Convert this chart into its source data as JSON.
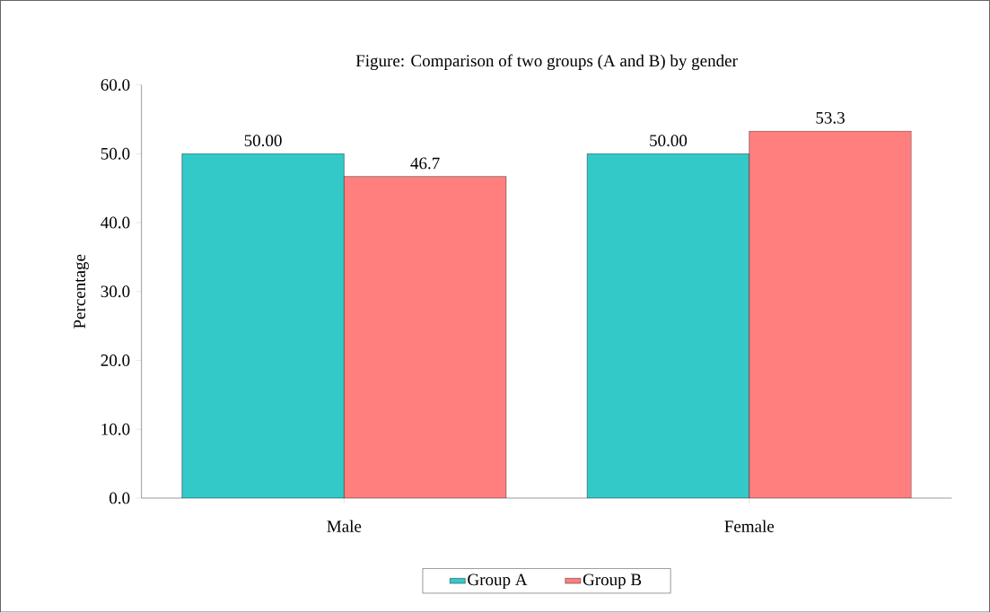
{
  "chart_data": {
    "type": "bar",
    "title": "Figure: Comparison of two groups (A and B) by gender",
    "ylabel": "Percentage",
    "categories": [
      "Male",
      "Female"
    ],
    "series": [
      {
        "name": "Group A",
        "color": "#33c9c9",
        "values": [
          50.0,
          50.0
        ],
        "value_labels": [
          "50.00",
          "50.00"
        ]
      },
      {
        "name": "Group B",
        "color": "#ff7f7f",
        "values": [
          46.7,
          53.3
        ],
        "value_labels": [
          "46.7",
          "53.3"
        ]
      }
    ],
    "ylim": [
      0,
      60
    ],
    "yticks": [
      {
        "value": 0,
        "label": "0.0"
      },
      {
        "value": 10,
        "label": "10.0"
      },
      {
        "value": 20,
        "label": "20.0"
      },
      {
        "value": 30,
        "label": "30.0"
      },
      {
        "value": 40,
        "label": "40.0"
      },
      {
        "value": 50,
        "label": "50.0"
      },
      {
        "value": 60,
        "label": "60.0"
      }
    ],
    "legend": "bottom"
  }
}
